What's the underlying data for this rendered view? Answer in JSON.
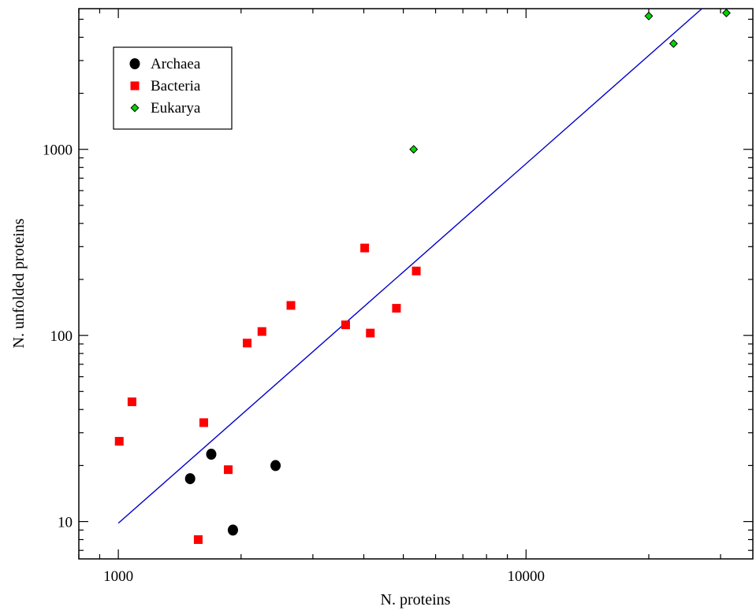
{
  "chart_data": {
    "type": "scatter",
    "xlabel": "N. proteins",
    "ylabel": "N. unfolded proteins",
    "x_scale": "log",
    "y_scale": "log",
    "xlim": [
      800,
      36000
    ],
    "ylim": [
      6.3,
      5700
    ],
    "x_ticks": [
      {
        "value": 1000,
        "label": "1000"
      },
      {
        "value": 10000,
        "label": "10000"
      }
    ],
    "y_ticks": [
      {
        "value": 10,
        "label": "10"
      },
      {
        "value": 100,
        "label": "100"
      },
      {
        "value": 1000,
        "label": "1000"
      }
    ],
    "grid": false,
    "legend_position": "top-left",
    "series": [
      {
        "name": "Archaea",
        "marker": "circle",
        "color": "#000000",
        "points": [
          {
            "x": 1500,
            "y": 17
          },
          {
            "x": 1690,
            "y": 23
          },
          {
            "x": 1910,
            "y": 9
          },
          {
            "x": 2430,
            "y": 20
          }
        ]
      },
      {
        "name": "Bacteria",
        "marker": "square",
        "color": "#ff0000",
        "points": [
          {
            "x": 1005,
            "y": 27
          },
          {
            "x": 1080,
            "y": 44
          },
          {
            "x": 1570,
            "y": 8
          },
          {
            "x": 1620,
            "y": 34
          },
          {
            "x": 1860,
            "y": 19
          },
          {
            "x": 2070,
            "y": 91
          },
          {
            "x": 2250,
            "y": 105
          },
          {
            "x": 2650,
            "y": 145
          },
          {
            "x": 3610,
            "y": 114
          },
          {
            "x": 4020,
            "y": 295
          },
          {
            "x": 4150,
            "y": 103
          },
          {
            "x": 4810,
            "y": 140
          },
          {
            "x": 5380,
            "y": 222
          }
        ]
      },
      {
        "name": "Eukarya",
        "marker": "diamond",
        "color": "#00d400",
        "points": [
          {
            "x": 5300,
            "y": 1000
          },
          {
            "x": 20000,
            "y": 5200
          },
          {
            "x": 23000,
            "y": 3700
          },
          {
            "x": 31000,
            "y": 5400
          }
        ]
      }
    ],
    "fit_line": {
      "color": "#0000cc",
      "points": [
        {
          "x": 1000,
          "y": 9.8
        },
        {
          "x": 27000,
          "y": 5700
        }
      ]
    }
  }
}
